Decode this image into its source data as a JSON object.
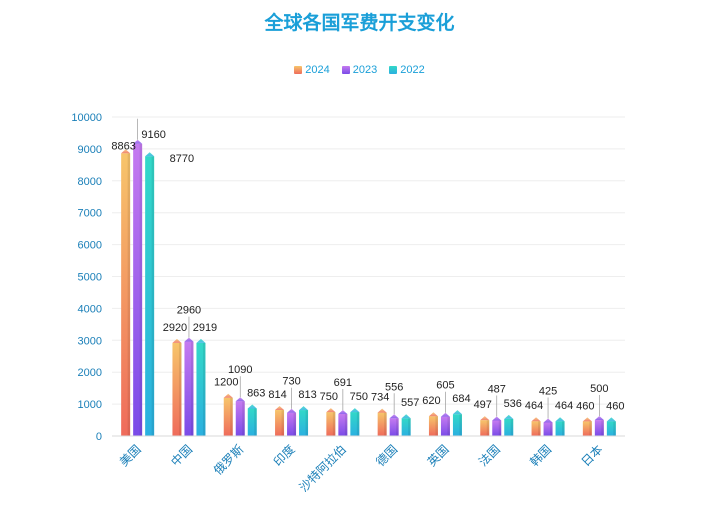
{
  "chart_data": {
    "type": "bar",
    "title": "全球各国军费开支变化",
    "categories": [
      "美国",
      "中国",
      "俄罗斯",
      "印度",
      "沙特阿拉伯",
      "德国",
      "英国",
      "法国",
      "韩国",
      "日本"
    ],
    "series": [
      {
        "name": "2024",
        "values": [
          8863,
          2920,
          1200,
          814,
          750,
          734,
          620,
          497,
          464,
          460
        ]
      },
      {
        "name": "2023",
        "values": [
          9160,
          2960,
          1090,
          730,
          691,
          556,
          605,
          487,
          425,
          500
        ]
      },
      {
        "name": "2022",
        "values": [
          8770,
          2919,
          863,
          813,
          750,
          557,
          684,
          536,
          464,
          460
        ]
      }
    ],
    "yticks": [
      "0",
      "1000",
      "2000",
      "3000",
      "4000",
      "5000",
      "6000",
      "7000",
      "8000",
      "9000",
      "10000"
    ],
    "ylim": [
      0,
      10000
    ],
    "grid": true,
    "legend": "top-center",
    "colors": {
      "2024": [
        "#f7c56b",
        "#ef6b5b"
      ],
      "2023": [
        "#c57af0",
        "#7a4be8"
      ],
      "2022": [
        "#32d8c8",
        "#2bb0e0"
      ]
    }
  }
}
